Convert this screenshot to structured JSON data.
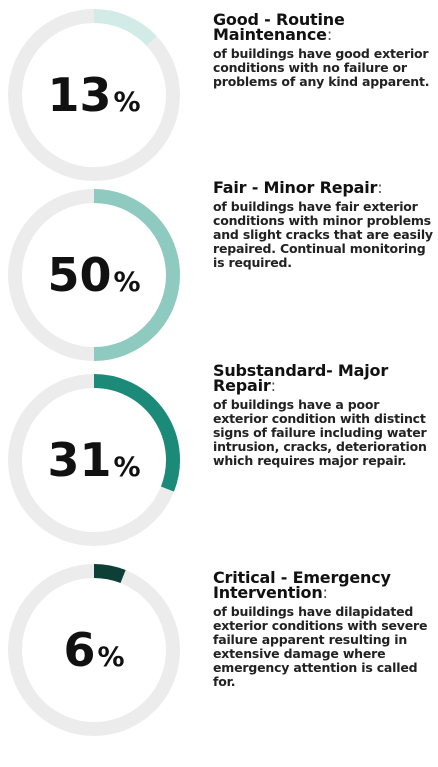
{
  "chart_data": [
    {
      "type": "donut",
      "value": 13,
      "unit": "%",
      "color": "#d2ebe7",
      "track_color": "#ececec",
      "title": "Good - Routine Maintenance",
      "separator": ":",
      "description": "of buildings have good exterior conditions with no failure or problems of any kind apparent."
    },
    {
      "type": "donut",
      "value": 50,
      "unit": "%",
      "color": "#8fcac1",
      "track_color": "#ececec",
      "title": "Fair - Minor Repair",
      "separator": ":",
      "description": "of buildings have fair exterior conditions with minor problems and slight cracks that are easily repaired. Continual monitoring is required."
    },
    {
      "type": "donut",
      "value": 31,
      "unit": "%",
      "color": "#1b8a78",
      "track_color": "#ececec",
      "title": "Substandard- Major Repair",
      "separator": ":",
      "description": "of buildings have a poor exterior condition with distinct signs of failure including water intrusion, cracks, deterioration which requires major repair."
    },
    {
      "type": "donut",
      "value": 6,
      "unit": "%",
      "color": "#0e3f36",
      "track_color": "#ececec",
      "title": "Critical - Emergency Intervention",
      "separator": ":",
      "description": "of buildings have dilapidated exterior conditions with severe failure apparent resulting in extensive damage where emergency attention is called for."
    }
  ]
}
